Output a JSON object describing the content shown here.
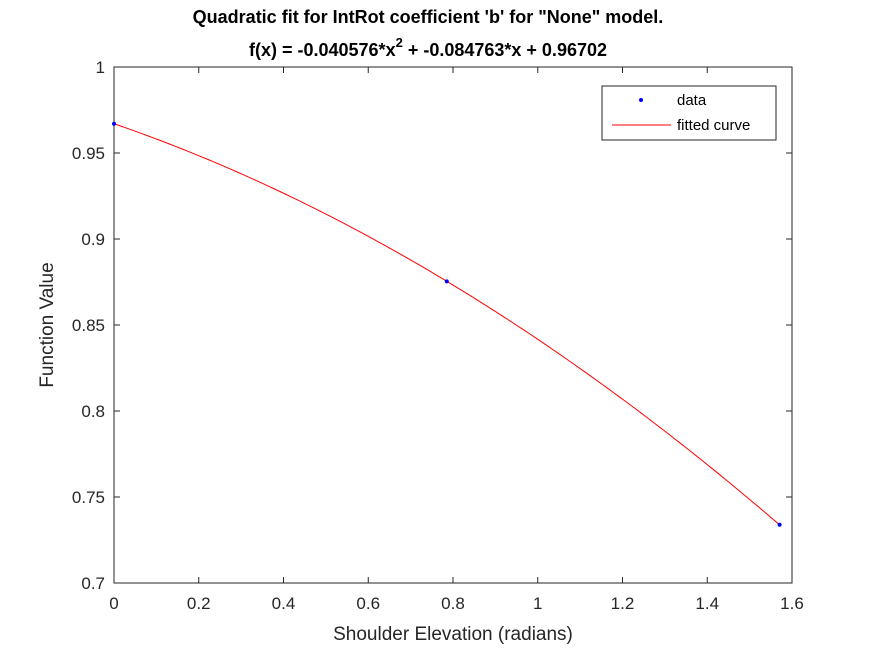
{
  "chart_data": {
    "type": "line",
    "title": "Quadratic fit for IntRot coefficient 'b' for \"None\" model.",
    "subtitle_prefix": "f(x) = -0.040576*x",
    "subtitle_superscript": "2",
    "subtitle_suffix": " + -0.084763*x + 0.96702",
    "xlabel": "Shoulder Elevation (radians)",
    "ylabel": "Function Value",
    "xlim": [
      0,
      1.6
    ],
    "ylim": [
      0.7,
      1
    ],
    "xticks": [
      0,
      0.2,
      0.4,
      0.6,
      0.8,
      1,
      1.2,
      1.4,
      1.6
    ],
    "xtick_labels": [
      "0",
      "0.2",
      "0.4",
      "0.6",
      "0.8",
      "1",
      "1.2",
      "1.4",
      "1.6"
    ],
    "yticks": [
      0.7,
      0.75,
      0.8,
      0.85,
      0.9,
      0.95,
      1
    ],
    "ytick_labels": [
      "0.7",
      "0.75",
      "0.8",
      "0.85",
      "0.9",
      "0.95",
      "1"
    ],
    "grid": false,
    "legend_position": "top-right",
    "series": [
      {
        "name": "data",
        "kind": "points",
        "color": "#0000ff",
        "x": [
          0,
          0.7854,
          1.5708
        ],
        "y": [
          0.96702,
          0.87538,
          0.73388
        ]
      },
      {
        "name": "fitted curve",
        "kind": "line",
        "color": "#ff0000",
        "coefficients": [
          -0.040576,
          -0.084763,
          0.96702
        ],
        "x_range": [
          0,
          1.5708
        ]
      }
    ]
  }
}
